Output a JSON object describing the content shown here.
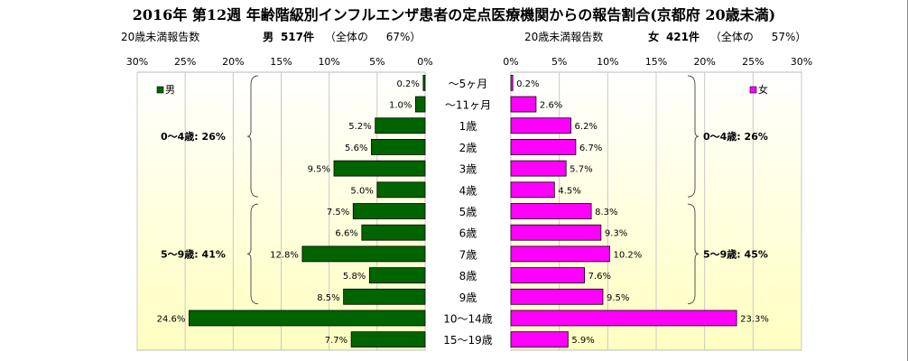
{
  "title": "2016年 第12週 年齢階級別インフルエンザ患者の定点医療機関からの報告割合(京都府 20歳未満)",
  "male_header": {
    "left_label": "20歳未満報告数",
    "sex": "男",
    "count": "517件",
    "share_label": "（全体の",
    "share_value": "67%）"
  },
  "female_header": {
    "left_label": "20歳未満報告数",
    "sex": "女",
    "count": "421件",
    "share_label": "（全体の",
    "share_value": "57%）"
  },
  "colors": {
    "male": "#006400",
    "female": "#ff00ff",
    "plot_bg_top": "#ffffff",
    "plot_bg_bottom": "#ffffc0",
    "grid": "#c8c8c8",
    "bracket": "#555555"
  },
  "chart_data": {
    "type": "bar",
    "categories": [
      "～5ヶ月",
      "～11ヶ月",
      "1歳",
      "2歳",
      "3歳",
      "4歳",
      "5歳",
      "6歳",
      "7歳",
      "8歳",
      "9歳",
      "10～14歳",
      "15～19歳"
    ],
    "series": [
      {
        "name": "男",
        "values": [
          0.2,
          1.0,
          5.2,
          5.6,
          9.5,
          5.0,
          7.5,
          6.6,
          12.8,
          5.8,
          8.5,
          24.6,
          7.7
        ],
        "labels": [
          "0.2%",
          "1.0%",
          "5.2%",
          "5.6%",
          "9.5%",
          "5.0%",
          "7.5%",
          "6.6%",
          "12.8%",
          "5.8%",
          "8.5%",
          "24.6%",
          "7.7%"
        ]
      },
      {
        "name": "女",
        "values": [
          0.2,
          2.6,
          6.2,
          6.7,
          5.7,
          4.5,
          8.3,
          9.3,
          10.2,
          7.6,
          9.5,
          23.3,
          5.9
        ],
        "labels": [
          "0.2%",
          "2.6%",
          "6.2%",
          "6.7%",
          "5.7%",
          "4.5%",
          "8.3%",
          "9.3%",
          "10.2%",
          "7.6%",
          "9.5%",
          "23.3%",
          "5.9%"
        ]
      }
    ],
    "xlim": [
      0,
      30
    ],
    "ticks": [
      "0%",
      "5%",
      "10%",
      "15%",
      "20%",
      "25%",
      "30%"
    ],
    "grid": true,
    "legend_male": "男",
    "legend_female": "女",
    "groups_male": [
      {
        "label": "0～4歳: 26%",
        "from": 0,
        "to": 5
      },
      {
        "label": "5～9歳: 41%",
        "from": 6,
        "to": 10
      }
    ],
    "groups_female": [
      {
        "label": "0～4歳: 26%",
        "from": 0,
        "to": 5
      },
      {
        "label": "5～9歳: 45%",
        "from": 6,
        "to": 10
      }
    ]
  }
}
